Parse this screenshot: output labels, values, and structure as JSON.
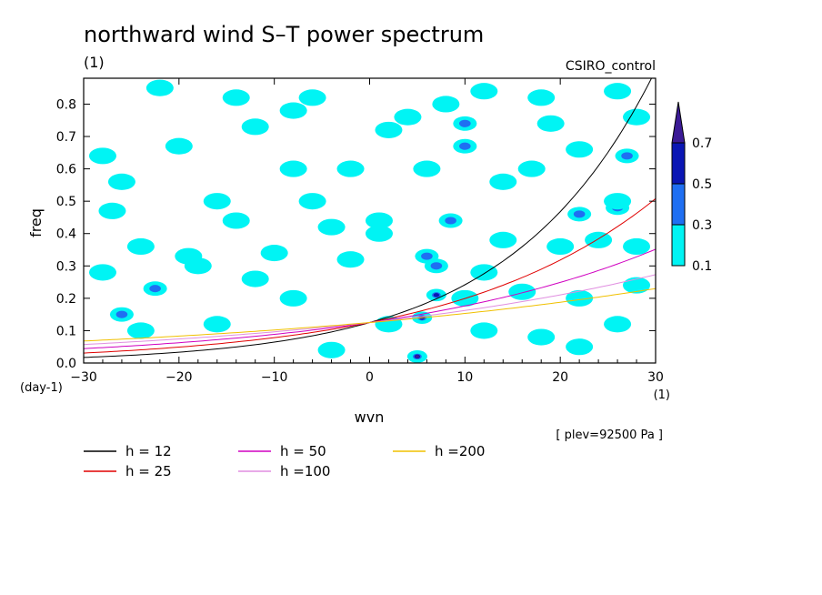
{
  "chart_data": {
    "type": "heatmap",
    "title": "northward wind S–T power spectrum",
    "subtitle_left": "(1)",
    "subtitle_right": "CSIRO_control",
    "xlabel": "wvn",
    "ylabel": "freq",
    "x_units": "(1)",
    "y_units": "(day-1)",
    "xlim": [
      -30,
      30
    ],
    "ylim": [
      0,
      0.88
    ],
    "x_ticks": [
      -30,
      -20,
      -10,
      0,
      10,
      20,
      30
    ],
    "x_tick_labels": [
      "−30",
      "−20",
      "−10",
      "0",
      "10",
      "20",
      "30"
    ],
    "y_ticks": [
      0.0,
      0.1,
      0.2,
      0.3,
      0.4,
      0.5,
      0.6,
      0.7,
      0.8
    ],
    "y_tick_labels": [
      "0.0",
      "0.1",
      "0.2",
      "0.3",
      "0.4",
      "0.5",
      "0.6",
      "0.7",
      "0.8"
    ],
    "footnote": "[ plev=92500 Pa ]",
    "colorbar": {
      "levels": [
        0.1,
        0.3,
        0.5,
        0.7
      ],
      "level_labels": [
        "0.1",
        "0.3",
        "0.5",
        "0.7"
      ],
      "colors": [
        "#00f4f4",
        "#1f6ff2",
        "#0a16b4",
        "#3b1a96"
      ]
    },
    "dispersion_curves": [
      {
        "name": "h = 12",
        "color": "#000000",
        "h": 12
      },
      {
        "name": "h = 25",
        "color": "#e00000",
        "h": 25
      },
      {
        "name": "h = 50",
        "color": "#d000c0",
        "h": 50
      },
      {
        "name": "h =100",
        "color": "#e08ee0",
        "h": 100
      },
      {
        "name": "h =200",
        "color": "#f0c000",
        "h": 200
      }
    ],
    "features": [
      {
        "x": 5,
        "y": 0.02,
        "level": 0.7
      },
      {
        "x": 7,
        "y": 0.21,
        "level": 0.5
      },
      {
        "x": 5.5,
        "y": 0.14,
        "level": 0.5
      },
      {
        "x": 7,
        "y": 0.3,
        "level": 0.3
      },
      {
        "x": 8.5,
        "y": 0.44,
        "level": 0.3
      },
      {
        "x": 10,
        "y": 0.67,
        "level": 0.3
      },
      {
        "x": 10,
        "y": 0.74,
        "level": 0.3
      },
      {
        "x": 6,
        "y": 0.33,
        "level": 0.3
      },
      {
        "x": -22.5,
        "y": 0.23,
        "level": 0.3
      },
      {
        "x": -26,
        "y": 0.15,
        "level": 0.3
      },
      {
        "x": 26,
        "y": 0.48,
        "level": 0.3
      },
      {
        "x": 27,
        "y": 0.64,
        "level": 0.3
      },
      {
        "x": 22,
        "y": 0.46,
        "level": 0.3
      },
      {
        "x": -16,
        "y": 0.5,
        "level": 0.1
      },
      {
        "x": -14,
        "y": 0.44,
        "level": 0.1
      },
      {
        "x": -6,
        "y": 0.5,
        "level": 0.1
      },
      {
        "x": -4,
        "y": 0.42,
        "level": 0.1
      },
      {
        "x": 1,
        "y": 0.4,
        "level": 0.1
      },
      {
        "x": 1,
        "y": 0.44,
        "level": 0.1
      },
      {
        "x": 14,
        "y": 0.56,
        "level": 0.1
      },
      {
        "x": 17,
        "y": 0.6,
        "level": 0.1
      },
      {
        "x": 22,
        "y": 0.66,
        "level": 0.1
      },
      {
        "x": 26,
        "y": 0.5,
        "level": 0.1
      },
      {
        "x": 24,
        "y": 0.38,
        "level": 0.1
      },
      {
        "x": 28,
        "y": 0.36,
        "level": 0.1
      },
      {
        "x": 20,
        "y": 0.36,
        "level": 0.1
      },
      {
        "x": 14,
        "y": 0.38,
        "level": 0.1
      },
      {
        "x": 12,
        "y": 0.28,
        "level": 0.1
      },
      {
        "x": 10,
        "y": 0.2,
        "level": 0.1
      },
      {
        "x": 16,
        "y": 0.22,
        "level": 0.1
      },
      {
        "x": 22,
        "y": 0.2,
        "level": 0.1
      },
      {
        "x": 26,
        "y": 0.12,
        "level": 0.1
      },
      {
        "x": 18,
        "y": 0.08,
        "level": 0.1
      },
      {
        "x": 12,
        "y": 0.1,
        "level": 0.1
      },
      {
        "x": 2,
        "y": 0.12,
        "level": 0.1
      },
      {
        "x": -2,
        "y": 0.32,
        "level": 0.1
      },
      {
        "x": -10,
        "y": 0.34,
        "level": 0.1
      },
      {
        "x": -12,
        "y": 0.26,
        "level": 0.1
      },
      {
        "x": -18,
        "y": 0.3,
        "level": 0.1
      },
      {
        "x": -19,
        "y": 0.33,
        "level": 0.1
      },
      {
        "x": -24,
        "y": 0.36,
        "level": 0.1
      },
      {
        "x": -27,
        "y": 0.47,
        "level": 0.1
      },
      {
        "x": -26,
        "y": 0.56,
        "level": 0.1
      },
      {
        "x": -28,
        "y": 0.64,
        "level": 0.1
      },
      {
        "x": -20,
        "y": 0.67,
        "level": 0.1
      },
      {
        "x": -12,
        "y": 0.73,
        "level": 0.1
      },
      {
        "x": -8,
        "y": 0.78,
        "level": 0.1
      },
      {
        "x": -6,
        "y": 0.82,
        "level": 0.1
      },
      {
        "x": -14,
        "y": 0.82,
        "level": 0.1
      },
      {
        "x": -22,
        "y": 0.85,
        "level": 0.1
      },
      {
        "x": 2,
        "y": 0.72,
        "level": 0.1
      },
      {
        "x": 4,
        "y": 0.76,
        "level": 0.1
      },
      {
        "x": 8,
        "y": 0.8,
        "level": 0.1
      },
      {
        "x": 12,
        "y": 0.84,
        "level": 0.1
      },
      {
        "x": 18,
        "y": 0.82,
        "level": 0.1
      },
      {
        "x": 26,
        "y": 0.84,
        "level": 0.1
      },
      {
        "x": 28,
        "y": 0.76,
        "level": 0.1
      },
      {
        "x": 19,
        "y": 0.74,
        "level": 0.1
      },
      {
        "x": -2,
        "y": 0.6,
        "level": 0.1
      },
      {
        "x": 6,
        "y": 0.6,
        "level": 0.1
      },
      {
        "x": -8,
        "y": 0.6,
        "level": 0.1
      },
      {
        "x": -24,
        "y": 0.1,
        "level": 0.1
      },
      {
        "x": -16,
        "y": 0.12,
        "level": 0.1
      },
      {
        "x": -4,
        "y": 0.04,
        "level": 0.1
      },
      {
        "x": 22,
        "y": 0.05,
        "level": 0.1
      },
      {
        "x": 28,
        "y": 0.24,
        "level": 0.1
      },
      {
        "x": -28,
        "y": 0.28,
        "level": 0.1
      },
      {
        "x": -8,
        "y": 0.2,
        "level": 0.1
      }
    ]
  }
}
